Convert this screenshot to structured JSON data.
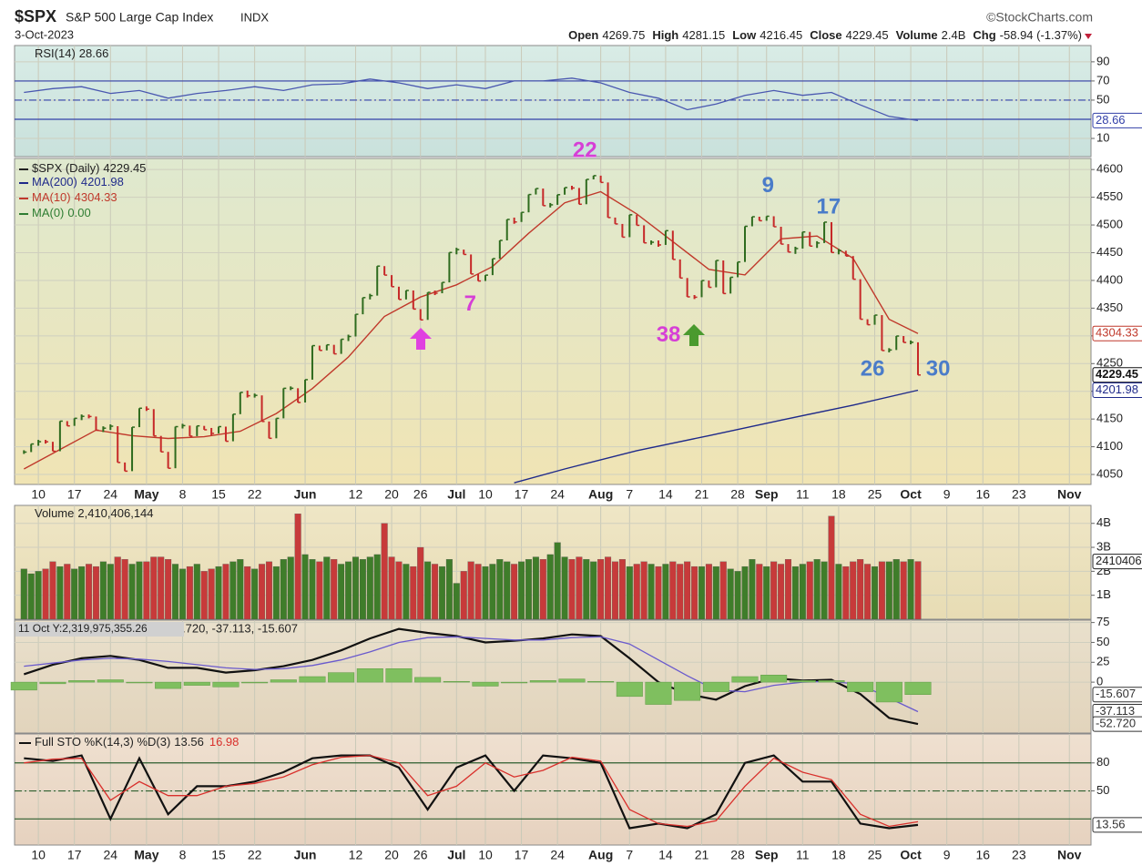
{
  "header": {
    "symbol": "$SPX",
    "name": "S&P 500 Large Cap Index",
    "exchange": "INDX",
    "date": "3-Oct-2023",
    "source": "©StockCharts.com",
    "quote": [
      {
        "label": "Open",
        "value": "4269.75"
      },
      {
        "label": "High",
        "value": "4281.15"
      },
      {
        "label": "Low",
        "value": "4216.45"
      },
      {
        "label": "Close",
        "value": "4229.45"
      },
      {
        "label": "Volume",
        "value": "2.4B"
      },
      {
        "label": "Chg",
        "value": "-58.94 (-1.37%)"
      }
    ]
  },
  "chart_data": [
    {
      "type": "line",
      "ylim": [
        -9,
        107
      ],
      "yticks": [
        10,
        50,
        70,
        90
      ],
      "reference_lines": [
        30,
        50,
        70
      ],
      "reference_color": "#3340a8",
      "x": [
        0,
        4,
        8,
        12,
        16,
        20,
        24,
        28,
        32,
        36,
        40,
        44,
        48,
        52,
        56,
        60,
        64,
        68,
        72,
        76,
        80,
        84,
        88,
        92,
        96,
        100,
        104,
        108,
        112,
        116,
        120,
        124
      ],
      "series": [
        {
          "name": "RSI(14)",
          "color": "#4a58b0",
          "values": [
            58,
            62,
            64,
            57,
            60,
            52,
            57,
            60,
            64,
            60,
            66,
            67,
            72,
            68,
            62,
            66,
            62,
            70,
            70,
            73,
            68,
            58,
            52,
            40,
            46,
            55,
            60,
            55,
            58,
            45,
            33,
            28.66
          ]
        }
      ]
    },
    {
      "type": "stock",
      "ylim": [
        4032,
        4620
      ],
      "yticks": [
        4050,
        4100,
        4150,
        4200,
        4250,
        4300,
        4350,
        4400,
        4450,
        4500,
        4550,
        4600
      ],
      "grid": true,
      "xlim": [
        -1.3,
        148
      ],
      "xticks": [
        {
          "value": 2,
          "label": "10"
        },
        {
          "value": 7,
          "label": "17"
        },
        {
          "value": 12,
          "label": "24"
        },
        {
          "value": 17,
          "label": "May"
        },
        {
          "value": 22,
          "label": "8"
        },
        {
          "value": 27,
          "label": "15"
        },
        {
          "value": 32,
          "label": "22"
        },
        {
          "value": 39,
          "label": "Jun"
        },
        {
          "value": 46,
          "label": "12"
        },
        {
          "value": 51,
          "label": "20"
        },
        {
          "value": 55,
          "label": "26"
        },
        {
          "value": 60,
          "label": "Jul"
        },
        {
          "value": 64,
          "label": "10"
        },
        {
          "value": 69,
          "label": "17"
        },
        {
          "value": 74,
          "label": "24"
        },
        {
          "value": 80,
          "label": "Aug"
        },
        {
          "value": 84,
          "label": "7"
        },
        {
          "value": 89,
          "label": "14"
        },
        {
          "value": 94,
          "label": "21"
        },
        {
          "value": 99,
          "label": "28"
        },
        {
          "value": 103,
          "label": "Sep"
        },
        {
          "value": 108,
          "label": "11"
        },
        {
          "value": 113,
          "label": "18"
        },
        {
          "value": 118,
          "label": "25"
        },
        {
          "value": 123,
          "label": "Oct"
        },
        {
          "value": 128,
          "label": "9"
        },
        {
          "value": 133,
          "label": "16"
        },
        {
          "value": 138,
          "label": "23"
        },
        {
          "value": 145,
          "label": "Nov"
        }
      ],
      "up_color": "#2e6b1e",
      "down_color": "#c62828",
      "series": [
        {
          "name": "$SPX (Daily)",
          "color": "#222222",
          "values": [
            4090.38,
            4105.02,
            4109.11,
            4108.94,
            4091.95,
            4146.22,
            4137.64,
            4151.32,
            4154.87,
            4154.52,
            4129.79,
            4133.52,
            4137.04,
            4071.63,
            4055.99,
            4135.35,
            4169.48,
            4167.87,
            4119.58,
            4090.75,
            4061.22,
            4136.25,
            4138.12,
            4119.17,
            4137.64,
            4130.62,
            4124.08,
            4136.28,
            4109.9,
            4158.77,
            4198.05,
            4191.98,
            4192.63,
            4145.58,
            4115.24,
            4151.28,
            4205.45,
            4205.52,
            4179.83,
            4221.02,
            4282.37,
            4273.79,
            4283.85,
            4267.52,
            4293.93,
            4298.86,
            4338.93,
            4369.01,
            4372.59,
            4425.84,
            4409.59,
            4388.71,
            4365.69,
            4381.89,
            4348.33,
            4328.82,
            4378.41,
            4376.86,
            4396.44,
            4450.38,
            4455.59,
            4446.82,
            4411.59,
            4398.95,
            4409.53,
            4439.26,
            4472.16,
            4510.04,
            4505.42,
            4522.79,
            4554.98,
            4565.72,
            4534.87,
            4536.34,
            4554.64,
            4567.46,
            4566.75,
            4537.41,
            4582.23,
            4588.96,
            4576.73,
            4513.39,
            4501.89,
            4478.03,
            4518.44,
            4499.38,
            4467.71,
            4468.83,
            4464.05,
            4489.72,
            4437.86,
            4404.33,
            4370.36,
            4369.71,
            4399.77,
            4387.55,
            4436.01,
            4376.31,
            4405.71,
            4433.31,
            4497.63,
            4514.87,
            4507.66,
            4515.77,
            4496.83,
            4465.48,
            4451.14,
            4457.49,
            4487.46,
            4461.9,
            4467.44,
            4505.1,
            4450.32,
            4453.53,
            4443.95,
            4402.2,
            4330.0,
            4320.06,
            4337.44,
            4273.53,
            4274.51,
            4299.7,
            4288.05,
            4288.39,
            4229.45
          ]
        },
        {
          "name": "MA(200)",
          "color": "#1f2a8a",
          "x": [
            68,
            75,
            85,
            95,
            105,
            115,
            124
          ],
          "values": [
            4035,
            4060,
            4093,
            4120,
            4148,
            4175,
            4201.98
          ]
        },
        {
          "name": "MA(10)",
          "color": "#c0392b",
          "x": [
            0,
            5,
            10,
            15,
            20,
            25,
            30,
            35,
            40,
            45,
            50,
            55,
            60,
            65,
            70,
            75,
            80,
            85,
            90,
            95,
            100,
            105,
            110,
            115,
            120,
            124
          ],
          "values": [
            4060,
            4095,
            4130,
            4120,
            4115,
            4118,
            4128,
            4160,
            4205,
            4262,
            4335,
            4370,
            4392,
            4425,
            4485,
            4540,
            4560,
            4520,
            4470,
            4420,
            4410,
            4475,
            4480,
            4440,
            4330,
            4304.33
          ]
        },
        {
          "name": "MA(0)",
          "color": "#2e7d32",
          "x": [],
          "values": [],
          "last": 0,
          "last_label": "0.00"
        }
      ],
      "annotations": [
        {
          "text": "22",
          "x": 77.8,
          "y": 4633,
          "color": "#d63fd6"
        },
        {
          "text": "7",
          "x": 61.9,
          "y": 4356,
          "color": "#d63fd6"
        },
        {
          "text": "38",
          "x": 89.4,
          "y": 4300,
          "color": "#d63fd6"
        },
        {
          "text": "9",
          "x": 103.2,
          "y": 4570,
          "color": "#4a7cc9"
        },
        {
          "text": "17",
          "x": 111.6,
          "y": 4531,
          "color": "#4a7cc9"
        },
        {
          "text": "26",
          "x": 117.7,
          "y": 4239,
          "color": "#4a7cc9"
        },
        {
          "text": "30",
          "x": 126.8,
          "y": 4239,
          "color": "#4a7cc9"
        }
      ]
    },
    {
      "type": "bar",
      "name": "Volume",
      "ylim": [
        0,
        4.75
      ],
      "yticks": [
        {
          "value": 1,
          "label": "1B"
        },
        {
          "value": 2,
          "label": "2B"
        },
        {
          "value": 3,
          "label": "3B"
        },
        {
          "value": 4,
          "label": "4B"
        }
      ],
      "last_label": "2,410,406,144",
      "box_label": "2410406144",
      "values": [
        2.1,
        1.9,
        2.0,
        2.1,
        2.4,
        2.2,
        2.3,
        2.1,
        2.2,
        2.3,
        2.2,
        2.4,
        2.3,
        2.6,
        2.5,
        2.3,
        2.4,
        2.4,
        2.6,
        2.6,
        2.5,
        2.3,
        2.1,
        2.2,
        2.3,
        2.0,
        2.1,
        2.2,
        2.3,
        2.4,
        2.5,
        2.2,
        2.1,
        2.3,
        2.4,
        2.2,
        2.5,
        2.6,
        4.4,
        2.7,
        2.5,
        2.4,
        2.6,
        2.5,
        2.3,
        2.4,
        2.6,
        2.5,
        2.6,
        2.7,
        4.0,
        2.6,
        2.4,
        2.3,
        2.2,
        3.0,
        2.4,
        2.3,
        2.2,
        2.5,
        1.5,
        2.0,
        2.4,
        2.3,
        2.2,
        2.3,
        2.5,
        2.4,
        2.3,
        2.4,
        2.5,
        2.6,
        2.5,
        2.7,
        3.2,
        2.6,
        2.5,
        2.6,
        2.5,
        2.4,
        2.5,
        2.6,
        2.4,
        2.5,
        2.2,
        2.3,
        2.4,
        2.3,
        2.2,
        2.3,
        2.4,
        2.3,
        2.4,
        2.2,
        2.2,
        2.3,
        2.2,
        2.4,
        2.1,
        2.0,
        2.2,
        2.5,
        2.3,
        2.2,
        2.4,
        2.3,
        2.5,
        2.2,
        2.3,
        2.4,
        2.5,
        2.4,
        4.3,
        2.3,
        2.2,
        2.4,
        2.5,
        2.3,
        2.2,
        2.4,
        2.4,
        2.5,
        2.4,
        2.5,
        2.410406144
      ]
    },
    {
      "type": "line",
      "ylim": [
        -64,
        78
      ],
      "yticks": [
        0,
        25,
        50,
        75
      ],
      "tooltip": "11 Oct Y:2,319,975,355.26",
      "legend_text": ".720, -37.113, -15.607",
      "x": [
        0,
        4,
        8,
        12,
        16,
        20,
        24,
        28,
        32,
        36,
        40,
        44,
        48,
        52,
        56,
        60,
        64,
        68,
        72,
        76,
        80,
        84,
        88,
        92,
        96,
        100,
        104,
        108,
        112,
        116,
        120,
        124
      ],
      "series": [
        {
          "color": "#111111",
          "values": [
            10,
            22,
            30,
            33,
            28,
            18,
            18,
            12,
            15,
            20,
            28,
            40,
            55,
            67,
            62,
            58,
            50,
            52,
            55,
            60,
            58,
            30,
            0,
            -15,
            -22,
            -5,
            5,
            2,
            3,
            -15,
            -45,
            -52.72
          ],
          "value_labels": [
            "-52.720"
          ]
        },
        {
          "color": "#6a5acd",
          "values": [
            20,
            24,
            28,
            30,
            29,
            26,
            22,
            18,
            16,
            17,
            21,
            28,
            38,
            50,
            56,
            57,
            55,
            53,
            53,
            56,
            57,
            48,
            28,
            8,
            -10,
            -12,
            -4,
            0,
            1,
            -3,
            -20,
            -37.113
          ]
        },
        {
          "color": "#7fbf5f",
          "style": "histogram",
          "values": [
            -10,
            -2,
            2,
            3,
            -1,
            -8,
            -4,
            -6,
            -1,
            3,
            7,
            12,
            17,
            17,
            6,
            1,
            -5,
            -1,
            2,
            4,
            1,
            -18,
            -28,
            -23,
            -12,
            7,
            9,
            2,
            2,
            -12,
            -25,
            -15.607
          ]
        }
      ]
    },
    {
      "type": "line",
      "title": "Full STO %K(14,3) %D(3)",
      "ylim": [
        -8,
        111
      ],
      "yticks": [
        50,
        80
      ],
      "reference_lines": [
        20,
        50,
        80
      ],
      "reference_color": "#2f5f2f",
      "x": [
        0,
        4,
        8,
        12,
        16,
        20,
        24,
        28,
        32,
        36,
        40,
        44,
        48,
        52,
        56,
        60,
        64,
        68,
        72,
        76,
        80,
        84,
        88,
        92,
        96,
        100,
        104,
        108,
        112,
        116,
        120,
        124
      ],
      "series": [
        {
          "color": "#111111",
          "values": [
            85,
            82,
            88,
            20,
            85,
            25,
            55,
            55,
            60,
            70,
            85,
            88,
            88,
            75,
            30,
            75,
            88,
            50,
            88,
            85,
            80,
            10,
            15,
            10,
            25,
            80,
            88,
            60,
            60,
            15,
            10,
            13.56
          ]
        },
        {
          "color": "#d9302c",
          "values": [
            80,
            84,
            85,
            40,
            60,
            45,
            45,
            55,
            58,
            65,
            78,
            86,
            88,
            80,
            45,
            55,
            80,
            65,
            72,
            86,
            82,
            30,
            15,
            12,
            18,
            55,
            85,
            70,
            62,
            25,
            12,
            16.98
          ]
        }
      ]
    }
  ]
}
